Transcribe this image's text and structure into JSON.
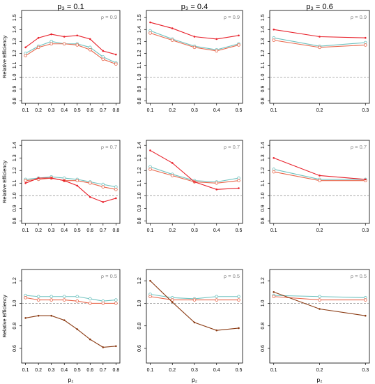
{
  "figure": {
    "column_titles": [
      "p₃ = 0.1",
      "p₃ = 0.4",
      "p₃ = 0.6"
    ],
    "ylabel": "Relative Efficiency",
    "xlabel": "p₂",
    "colors": {
      "red": "#e8202a",
      "brown": "#8a3a12",
      "orange": "#e8664a",
      "teal": "#6fc2bf",
      "grey": "#9a9a9a"
    }
  },
  "chart_data": [
    {
      "type": "line",
      "x": [
        0.1,
        0.2,
        0.3,
        0.4,
        0.5,
        0.6,
        0.7,
        0.8
      ],
      "ylim": [
        0.78,
        1.56
      ],
      "yticks": [
        0.8,
        0.9,
        1.0,
        1.1,
        1.2,
        1.3,
        1.4,
        1.5
      ],
      "rho_label": "ρ = 0.9",
      "reference": 1.0,
      "series": [
        {
          "color": "red",
          "values": [
            1.25,
            1.33,
            1.36,
            1.34,
            1.35,
            1.32,
            1.22,
            1.19
          ]
        },
        {
          "color": "teal",
          "values": [
            1.2,
            1.26,
            1.3,
            1.28,
            1.28,
            1.25,
            1.17,
            1.12
          ]
        },
        {
          "color": "orange",
          "values": [
            1.18,
            1.25,
            1.28,
            1.28,
            1.27,
            1.23,
            1.15,
            1.11
          ]
        }
      ]
    },
    {
      "type": "line",
      "x": [
        0.1,
        0.2,
        0.3,
        0.4,
        0.5
      ],
      "ylim": [
        0.78,
        1.56
      ],
      "yticks": [
        0.8,
        0.9,
        1.0,
        1.1,
        1.2,
        1.3,
        1.4,
        1.5
      ],
      "rho_label": "ρ = 0.9",
      "reference": 1.0,
      "series": [
        {
          "color": "red",
          "values": [
            1.46,
            1.41,
            1.34,
            1.32,
            1.35
          ]
        },
        {
          "color": "teal",
          "values": [
            1.39,
            1.32,
            1.26,
            1.23,
            1.28
          ]
        },
        {
          "color": "orange",
          "values": [
            1.37,
            1.31,
            1.25,
            1.22,
            1.27
          ]
        }
      ]
    },
    {
      "type": "line",
      "x": [
        0.1,
        0.2,
        0.3
      ],
      "ylim": [
        0.78,
        1.56
      ],
      "yticks": [
        0.8,
        0.9,
        1.0,
        1.1,
        1.2,
        1.3,
        1.4,
        1.5
      ],
      "rho_label": "ρ = 0.9",
      "reference": 1.0,
      "series": [
        {
          "color": "red",
          "values": [
            1.4,
            1.34,
            1.33
          ]
        },
        {
          "color": "teal",
          "values": [
            1.33,
            1.26,
            1.29
          ]
        },
        {
          "color": "orange",
          "values": [
            1.31,
            1.25,
            1.27
          ]
        }
      ]
    },
    {
      "type": "line",
      "x": [
        0.1,
        0.2,
        0.3,
        0.4,
        0.5,
        0.6,
        0.7,
        0.8
      ],
      "ylim": [
        0.78,
        1.44
      ],
      "yticks": [
        0.8,
        0.9,
        1.0,
        1.1,
        1.2,
        1.3,
        1.4
      ],
      "rho_label": "ρ = 0.7",
      "reference": 1.0,
      "series": [
        {
          "color": "red",
          "values": [
            1.1,
            1.14,
            1.14,
            1.12,
            1.08,
            0.99,
            0.95,
            0.98
          ]
        },
        {
          "color": "teal",
          "values": [
            1.13,
            1.14,
            1.15,
            1.14,
            1.13,
            1.11,
            1.09,
            1.07
          ]
        },
        {
          "color": "orange",
          "values": [
            1.12,
            1.13,
            1.14,
            1.12,
            1.12,
            1.1,
            1.07,
            1.05
          ]
        }
      ]
    },
    {
      "type": "line",
      "x": [
        0.1,
        0.2,
        0.3,
        0.4,
        0.5
      ],
      "ylim": [
        0.78,
        1.44
      ],
      "yticks": [
        0.8,
        0.9,
        1.0,
        1.1,
        1.2,
        1.3,
        1.4
      ],
      "rho_label": "ρ = 0.7",
      "reference": 1.0,
      "series": [
        {
          "color": "red",
          "values": [
            1.36,
            1.26,
            1.11,
            1.05,
            1.06
          ]
        },
        {
          "color": "teal",
          "values": [
            1.23,
            1.17,
            1.12,
            1.11,
            1.14
          ]
        },
        {
          "color": "orange",
          "values": [
            1.21,
            1.16,
            1.11,
            1.1,
            1.12
          ]
        }
      ]
    },
    {
      "type": "line",
      "x": [
        0.1,
        0.2,
        0.3
      ],
      "ylim": [
        0.78,
        1.44
      ],
      "yticks": [
        0.8,
        0.9,
        1.0,
        1.1,
        1.2,
        1.3,
        1.4
      ],
      "rho_label": "ρ = 0.7",
      "reference": 1.0,
      "series": [
        {
          "color": "red",
          "values": [
            1.3,
            1.16,
            1.13
          ]
        },
        {
          "color": "teal",
          "values": [
            1.21,
            1.13,
            1.13
          ]
        },
        {
          "color": "orange",
          "values": [
            1.19,
            1.12,
            1.12
          ]
        }
      ]
    },
    {
      "type": "line",
      "x": [
        0.1,
        0.2,
        0.3,
        0.4,
        0.5,
        0.6,
        0.7,
        0.8
      ],
      "ylim": [
        0.47,
        1.3
      ],
      "yticks": [
        0.6,
        0.8,
        1.0,
        1.2
      ],
      "rho_label": "ρ = 0.5",
      "reference": 1.0,
      "series": [
        {
          "color": "brown",
          "values": [
            0.87,
            0.89,
            0.89,
            0.85,
            0.77,
            0.68,
            0.61,
            0.62
          ]
        },
        {
          "color": "teal",
          "values": [
            1.07,
            1.06,
            1.06,
            1.06,
            1.06,
            1.04,
            1.02,
            1.03
          ]
        },
        {
          "color": "orange",
          "values": [
            1.05,
            1.03,
            1.03,
            1.03,
            1.02,
            1.0,
            1.0,
            1.0
          ]
        }
      ]
    },
    {
      "type": "line",
      "x": [
        0.1,
        0.2,
        0.3,
        0.4,
        0.5
      ],
      "ylim": [
        0.47,
        1.3
      ],
      "yticks": [
        0.6,
        0.8,
        1.0,
        1.2
      ],
      "rho_label": "ρ = 0.5",
      "reference": 1.0,
      "series": [
        {
          "color": "brown",
          "values": [
            1.2,
            1.01,
            0.83,
            0.76,
            0.78
          ]
        },
        {
          "color": "teal",
          "values": [
            1.08,
            1.05,
            1.04,
            1.06,
            1.06
          ]
        },
        {
          "color": "orange",
          "values": [
            1.06,
            1.03,
            1.03,
            1.03,
            1.03
          ]
        }
      ]
    },
    {
      "type": "line",
      "x": [
        0.1,
        0.2,
        0.3
      ],
      "ylim": [
        0.47,
        1.3
      ],
      "yticks": [
        0.6,
        0.8,
        1.0,
        1.2
      ],
      "rho_label": "ρ = 0.5",
      "reference": 1.0,
      "series": [
        {
          "color": "brown",
          "values": [
            1.1,
            0.95,
            0.89
          ]
        },
        {
          "color": "teal",
          "values": [
            1.07,
            1.06,
            1.05
          ]
        },
        {
          "color": "orange",
          "values": [
            1.06,
            1.03,
            1.03
          ]
        }
      ]
    }
  ]
}
